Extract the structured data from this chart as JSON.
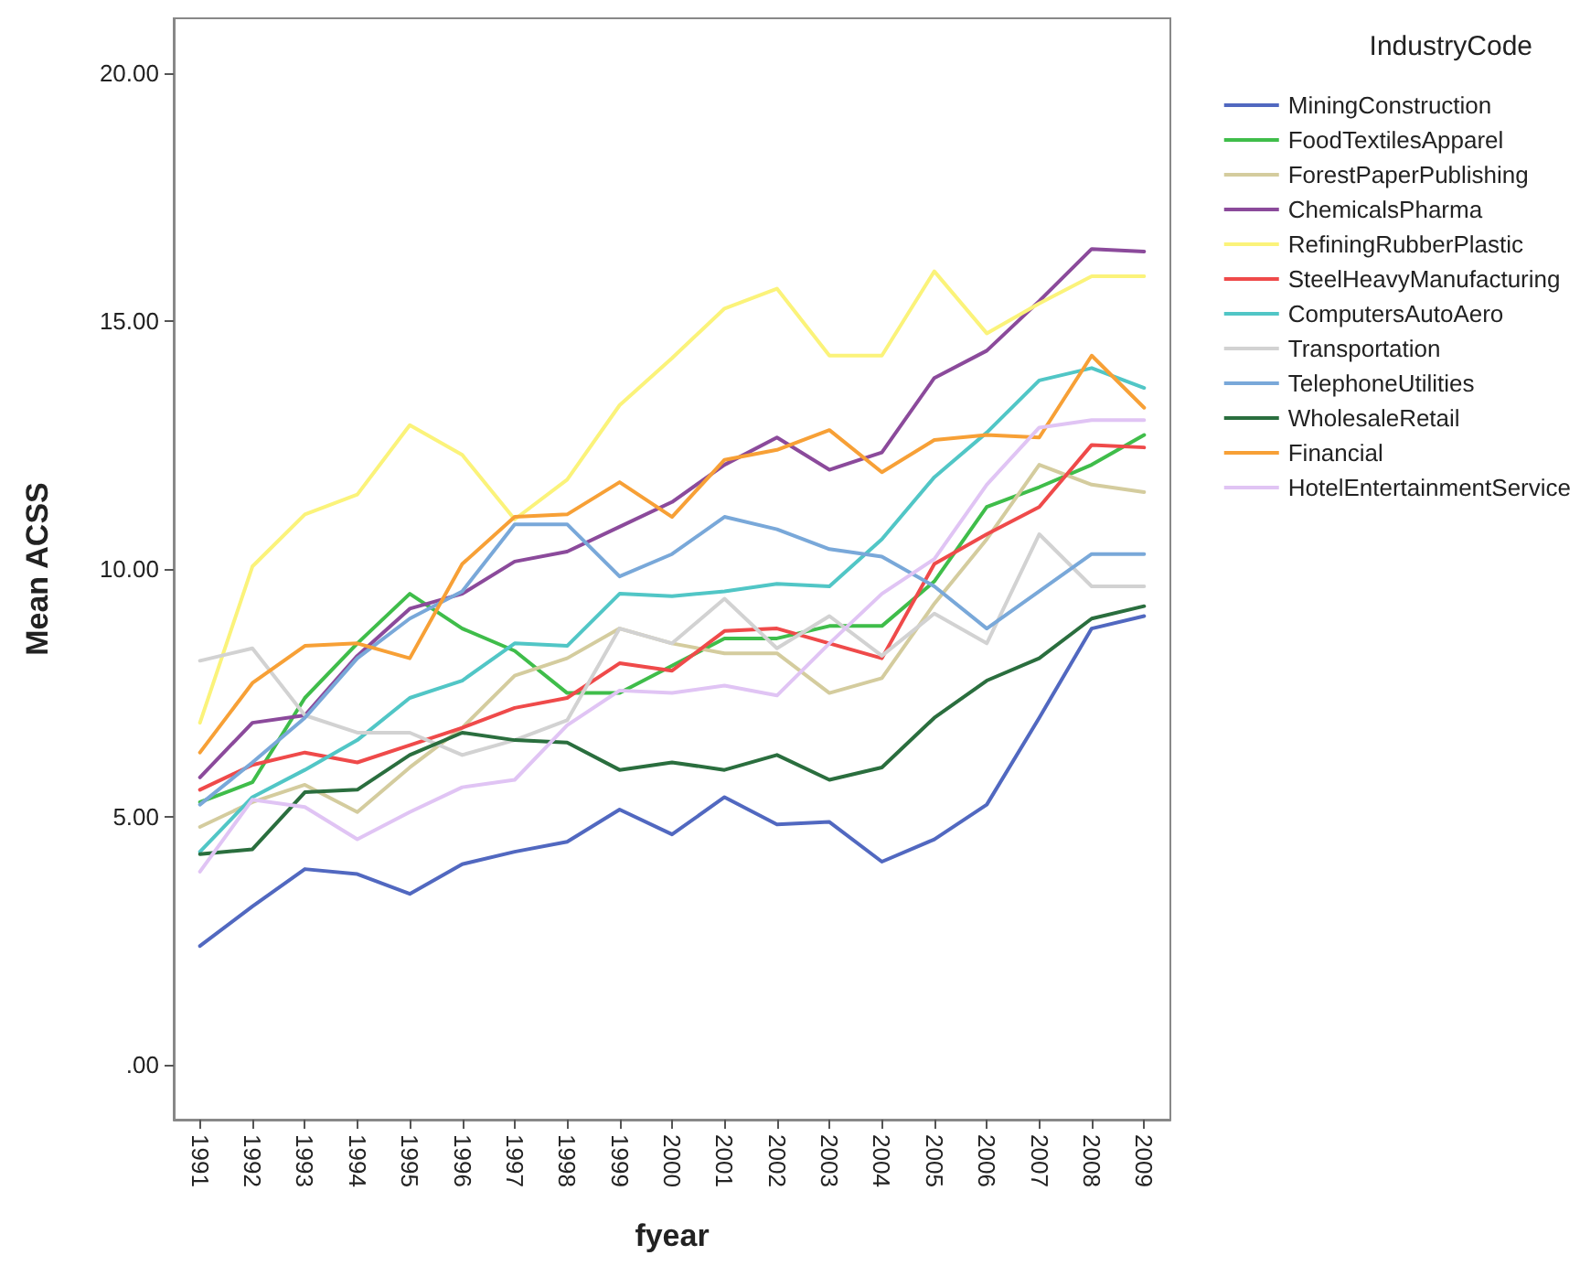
{
  "chart_data": {
    "type": "line",
    "xlabel": "fyear",
    "ylabel": "Mean ACSS",
    "legend_title": "IndustryCode",
    "legend": "right",
    "grid": false,
    "marker": "none",
    "line_style": "solid",
    "categories": [
      "1991",
      "1992",
      "1993",
      "1994",
      "1995",
      "1996",
      "1997",
      "1998",
      "1999",
      "2000",
      "2001",
      "2002",
      "2003",
      "2004",
      "2005",
      "2006",
      "2007",
      "2008",
      "2009"
    ],
    "ylim": [
      -1.1,
      21.1
    ],
    "yticks": [
      {
        "value": 0,
        "label": ".00"
      },
      {
        "value": 5,
        "label": "5.00"
      },
      {
        "value": 10,
        "label": "10.00"
      },
      {
        "value": 15,
        "label": "15.00"
      },
      {
        "value": 20,
        "label": "20.00"
      }
    ],
    "series": [
      {
        "name": "MiningConstruction",
        "color": "#5168c0",
        "values": [
          2.4,
          3.2,
          3.95,
          3.85,
          3.45,
          4.05,
          4.3,
          4.5,
          5.15,
          4.65,
          5.4,
          4.85,
          4.9,
          4.1,
          4.55,
          5.25,
          7.0,
          8.8,
          9.05
        ]
      },
      {
        "name": "FoodTextilesApparel",
        "color": "#3fbd4a",
        "values": [
          5.3,
          5.7,
          7.4,
          8.5,
          9.5,
          8.8,
          8.35,
          7.5,
          7.5,
          8.05,
          8.6,
          8.6,
          8.85,
          8.85,
          9.75,
          11.25,
          11.65,
          12.1,
          12.7
        ]
      },
      {
        "name": "ForestPaperPublishing",
        "color": "#d4cc9e",
        "values": [
          4.8,
          5.3,
          5.65,
          5.1,
          6.0,
          6.8,
          7.85,
          8.2,
          8.8,
          8.5,
          8.3,
          8.3,
          7.5,
          7.8,
          9.3,
          10.6,
          12.1,
          11.7,
          11.55
        ]
      },
      {
        "name": "ChemicalsPharma",
        "color": "#8b4a9b",
        "values": [
          5.8,
          6.9,
          7.05,
          8.25,
          9.2,
          9.5,
          10.15,
          10.35,
          10.85,
          11.35,
          12.1,
          12.65,
          12.0,
          12.35,
          13.85,
          14.4,
          15.4,
          16.45,
          16.4
        ]
      },
      {
        "name": "RefiningRubberPlastic",
        "color": "#fbf37a",
        "values": [
          6.9,
          10.05,
          11.1,
          11.5,
          12.9,
          12.3,
          11.0,
          11.8,
          13.3,
          14.25,
          15.25,
          15.65,
          14.3,
          14.3,
          16.0,
          14.75,
          15.35,
          15.9,
          15.9
        ]
      },
      {
        "name": "SteelHeavyManufacturing",
        "color": "#ef4a4a",
        "values": [
          5.55,
          6.05,
          6.3,
          6.1,
          6.45,
          6.8,
          7.2,
          7.4,
          8.1,
          7.95,
          8.75,
          8.8,
          8.5,
          8.2,
          10.1,
          10.7,
          11.25,
          12.5,
          12.45
        ]
      },
      {
        "name": "ComputersAutoAero",
        "color": "#51c6c6",
        "values": [
          4.3,
          5.4,
          5.95,
          6.55,
          7.4,
          7.75,
          8.5,
          8.45,
          9.5,
          9.45,
          9.55,
          9.7,
          9.65,
          10.6,
          11.85,
          12.75,
          13.8,
          14.05,
          13.65
        ]
      },
      {
        "name": "Transportation",
        "color": "#d2d2d2",
        "values": [
          8.15,
          8.4,
          7.05,
          6.7,
          6.7,
          6.25,
          6.55,
          6.95,
          8.8,
          8.5,
          9.4,
          8.4,
          9.05,
          8.25,
          9.1,
          8.5,
          10.7,
          9.65,
          9.65
        ]
      },
      {
        "name": "TelephoneUtilities",
        "color": "#79a8d9",
        "values": [
          5.25,
          6.1,
          7.0,
          8.2,
          9.0,
          9.55,
          10.9,
          10.9,
          9.85,
          10.3,
          11.05,
          10.8,
          10.4,
          10.25,
          9.65,
          8.8,
          9.55,
          10.3,
          10.3
        ]
      },
      {
        "name": "WholesaleRetail",
        "color": "#2a6e3e",
        "values": [
          4.25,
          4.35,
          5.5,
          5.55,
          6.25,
          6.7,
          6.55,
          6.5,
          5.95,
          6.1,
          5.95,
          6.25,
          5.75,
          6.0,
          7.0,
          7.75,
          8.2,
          9.0,
          9.25
        ]
      },
      {
        "name": "Financial",
        "color": "#f7a036",
        "values": [
          6.3,
          7.7,
          8.45,
          8.5,
          8.2,
          10.1,
          11.05,
          11.1,
          11.75,
          11.05,
          12.2,
          12.4,
          12.8,
          11.95,
          12.6,
          12.7,
          12.65,
          14.3,
          13.25
        ]
      },
      {
        "name": "HotelEntertainmentService",
        "color": "#e0c4f4",
        "values": [
          3.9,
          5.35,
          5.2,
          4.55,
          5.1,
          5.6,
          5.75,
          6.85,
          7.55,
          7.5,
          7.65,
          7.45,
          8.5,
          9.5,
          10.2,
          11.7,
          12.85,
          13.0,
          13.0
        ]
      }
    ]
  }
}
